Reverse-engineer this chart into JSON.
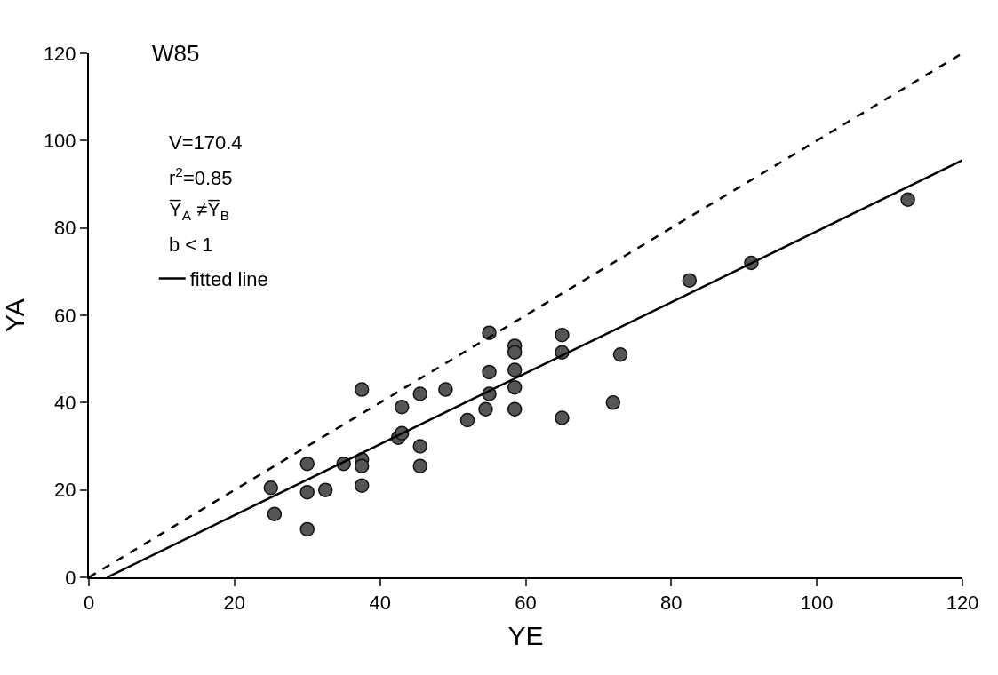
{
  "chart_data": {
    "type": "scatter",
    "title": "W85",
    "xlabel": "YE",
    "ylabel": "YA",
    "xlim": [
      0,
      120
    ],
    "ylim": [
      0,
      120
    ],
    "xticks": [
      0,
      20,
      40,
      60,
      80,
      100,
      120
    ],
    "yticks": [
      0,
      20,
      40,
      60,
      80,
      100,
      120
    ],
    "annotations": [
      "V=170.4",
      "r$^{2}$=0.85",
      "Y̅$_{A}$ ≠Y̅$_{B}$",
      "b < 1"
    ],
    "legend": "top left",
    "series": [
      {
        "marker": "circle",
        "color": "#555555",
        "x": [
          25,
          25.5,
          30,
          30,
          30,
          32.5,
          35,
          37.5,
          37.5,
          37.5,
          37.5,
          42.5,
          43,
          43,
          45.5,
          45.5,
          45.5,
          49,
          52,
          54.5,
          55,
          55,
          55,
          58.5,
          58.5,
          58.5,
          58.5,
          58.5,
          65,
          65,
          65,
          72,
          73,
          82.5,
          91,
          112.5
        ],
        "values": [
          20.5,
          14.5,
          26,
          19.5,
          11,
          20,
          26,
          43,
          27,
          25.5,
          21,
          32,
          33,
          39,
          42,
          30,
          25.5,
          43,
          36,
          38.5,
          56,
          47,
          42,
          53,
          51.5,
          47.5,
          43.5,
          38.5,
          55.5,
          51.5,
          36.5,
          40,
          51,
          68,
          72,
          86.5
        ]
      },
      {
        "type": "line",
        "name": "fitted line",
        "color": "#000000",
        "line_style": "solid",
        "marker": "none",
        "x": [
          2.5,
          120
        ],
        "values": [
          0,
          95.5
        ]
      },
      {
        "type": "line",
        "color": "#000000",
        "line_style": "dashed",
        "marker": "none",
        "x": [
          0,
          120
        ],
        "values": [
          0,
          120
        ]
      }
    ]
  }
}
